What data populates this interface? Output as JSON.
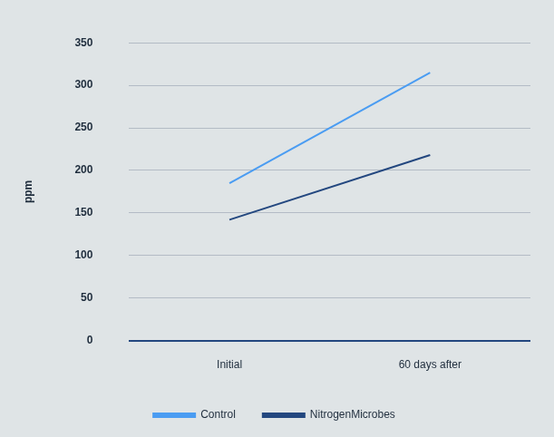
{
  "chart_data": {
    "type": "line",
    "y_label": "ppm",
    "categories": [
      "Initial",
      "60 days after"
    ],
    "series": [
      {
        "name": "Control",
        "color": "#4a9cf2",
        "values": [
          185,
          315
        ]
      },
      {
        "name": "NitrogenMicrobes",
        "color": "#23477f",
        "values": [
          142,
          218
        ]
      }
    ],
    "ylim": [
      0,
      350
    ],
    "yticks": [
      0,
      50,
      100,
      150,
      200,
      250,
      300,
      350
    ],
    "grid": true,
    "legend": "bottom"
  }
}
